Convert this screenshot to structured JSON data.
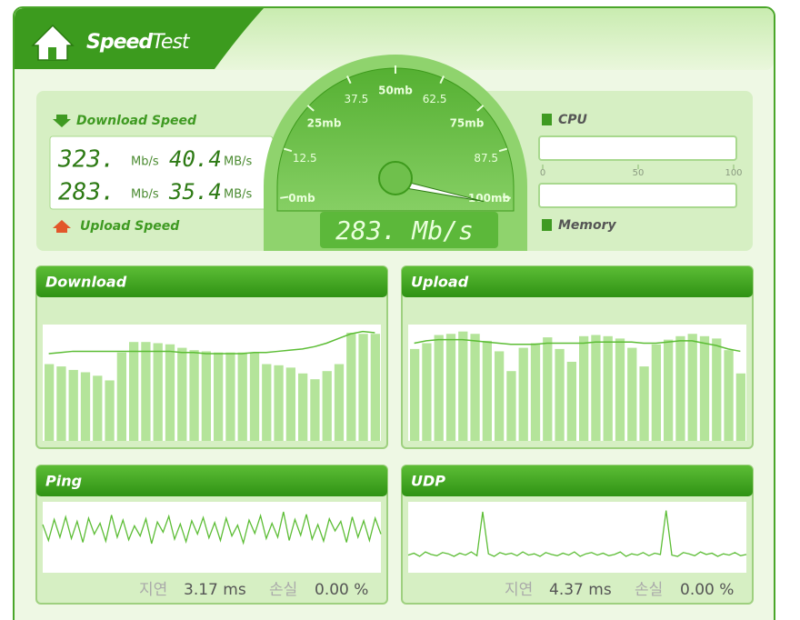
{
  "header": {
    "title_bold": "Speed",
    "title_light": "Test"
  },
  "speed": {
    "download_label": "Download Speed",
    "upload_label": "Upload Speed",
    "rows": [
      {
        "mbps": "323.",
        "mbps_unit": "Mb/s",
        "MBps": "40.4",
        "MBps_unit": "MB/s"
      },
      {
        "mbps": "283.",
        "mbps_unit": "Mb/s",
        "MBps": "35.4",
        "MBps_unit": "MB/s"
      }
    ]
  },
  "gauge": {
    "ticks": [
      {
        "value": 0,
        "label": "0mb"
      },
      12.5,
      {
        "value": 25,
        "label": "25mb"
      },
      37.5,
      {
        "value": 50,
        "label": "50mb"
      },
      62.5,
      {
        "value": 75,
        "label": "75mb"
      },
      87.5,
      {
        "value": 100,
        "label": "100mb"
      }
    ],
    "needle": 100,
    "reading": "283. Mb/s"
  },
  "system": {
    "cpu_label": "CPU",
    "memory_label": "Memory",
    "scale": [
      0,
      50,
      100
    ]
  },
  "panels": [
    {
      "title": "Download",
      "type": "bar",
      "ylim": [
        0,
        100
      ],
      "bars": [
        66,
        64,
        61,
        59,
        56,
        52,
        76,
        85,
        85,
        84,
        83,
        80,
        78,
        77,
        76,
        76,
        76,
        76,
        66,
        65,
        63,
        58,
        53,
        60,
        66,
        93,
        92,
        92
      ],
      "line": [
        75,
        76,
        77,
        77,
        77,
        77,
        77,
        77,
        77,
        77,
        77,
        76,
        76,
        75,
        75,
        75,
        75,
        76,
        76,
        77,
        78,
        79,
        81,
        84,
        88,
        92,
        94,
        93
      ]
    },
    {
      "title": "Upload",
      "type": "bar",
      "ylim": [
        0,
        100
      ],
      "bars": [
        79,
        84,
        91,
        92,
        94,
        92,
        86,
        77,
        60,
        80,
        84,
        89,
        79,
        68,
        90,
        91,
        90,
        88,
        80,
        64,
        83,
        87,
        90,
        92,
        90,
        88,
        78,
        58
      ],
      "line": [
        84,
        86,
        87,
        87,
        87,
        86,
        85,
        84,
        83,
        83,
        83,
        84,
        84,
        84,
        84,
        85,
        85,
        85,
        85,
        84,
        84,
        85,
        86,
        86,
        84,
        82,
        79,
        77
      ]
    },
    {
      "title": "Ping",
      "type": "wave",
      "ylim": [
        0,
        100
      ],
      "wave": [
        70,
        45,
        78,
        50,
        82,
        48,
        75,
        42,
        80,
        55,
        72,
        44,
        85,
        50,
        77,
        46,
        68,
        52,
        79,
        40,
        74,
        58,
        83,
        47,
        71,
        43,
        76,
        55,
        81,
        49,
        73,
        45,
        80,
        52,
        69,
        41,
        77,
        56,
        84,
        48,
        72,
        50,
        90,
        45,
        78,
        53,
        86,
        47,
        70,
        44,
        79,
        60,
        75,
        42,
        82,
        50,
        76,
        45,
        80,
        55
      ],
      "latency_label": "지연",
      "latency": "3.17 ms",
      "loss_label": "손실",
      "loss": "0.00 %"
    },
    {
      "title": "UDP",
      "type": "wave",
      "ylim": [
        0,
        100
      ],
      "wave": [
        22,
        25,
        20,
        27,
        23,
        21,
        26,
        24,
        20,
        25,
        22,
        27,
        21,
        90,
        24,
        20,
        26,
        23,
        25,
        21,
        27,
        22,
        24,
        20,
        26,
        23,
        21,
        25,
        22,
        27,
        20,
        24,
        26,
        22,
        25,
        21,
        23,
        27,
        20,
        24,
        22,
        26,
        21,
        25,
        23,
        92,
        22,
        20,
        26,
        24,
        21,
        27,
        23,
        25,
        20,
        24,
        22,
        26,
        21,
        23
      ],
      "latency_label": "지연",
      "latency": "4.37 ms",
      "loss_label": "손실",
      "loss": "0.00 %"
    }
  ]
}
